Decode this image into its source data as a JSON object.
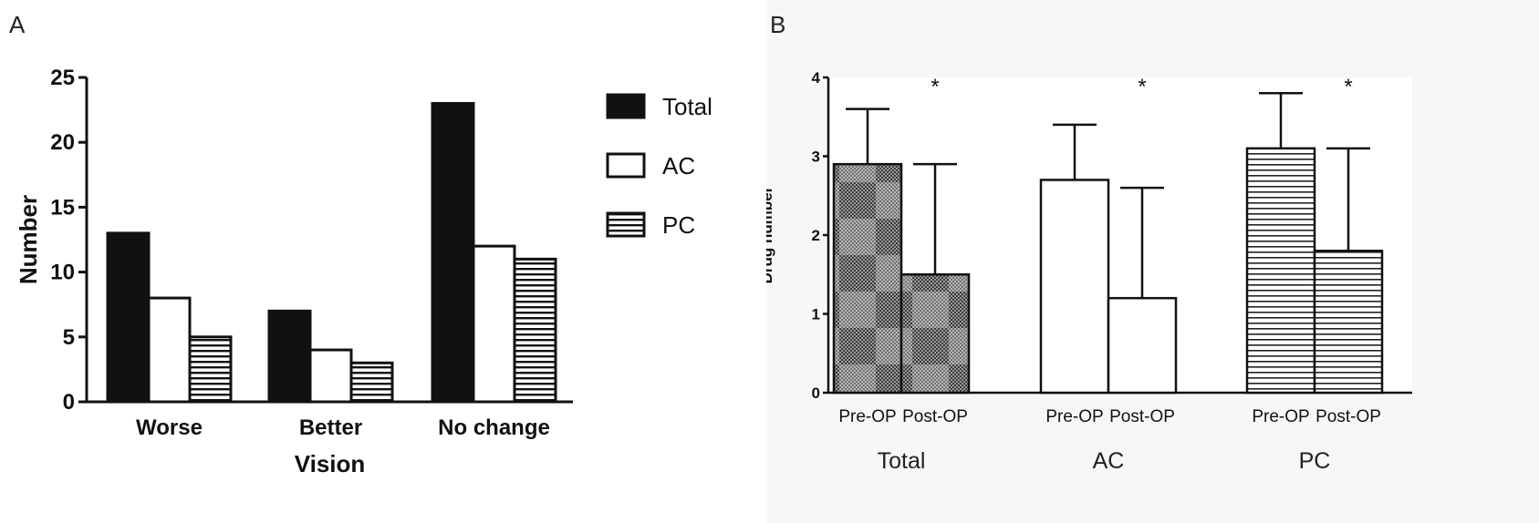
{
  "chart_data": [
    {
      "panel": "A",
      "type": "bar",
      "title": "",
      "xlabel": "Vision",
      "ylabel": "Number",
      "ylim": [
        0,
        25
      ],
      "yticks": [
        0,
        5,
        10,
        15,
        20,
        25
      ],
      "categories": [
        "Worse",
        "Better",
        "No change"
      ],
      "series": [
        {
          "name": "Total",
          "values": [
            13,
            7,
            23
          ],
          "pattern": "solid"
        },
        {
          "name": "AC",
          "values": [
            8,
            4,
            12
          ],
          "pattern": "white"
        },
        {
          "name": "PC",
          "values": [
            5,
            3,
            11
          ],
          "pattern": "hstripes"
        }
      ],
      "legend": "right"
    },
    {
      "panel": "B",
      "type": "bar",
      "title": "",
      "xlabel": "",
      "ylabel": "Drug number",
      "ylim": [
        0,
        4
      ],
      "yticks": [
        0,
        1,
        2,
        3,
        4
      ],
      "groups": [
        {
          "name": "Total",
          "pattern": "checker",
          "bars": [
            {
              "label": "Pre-OP",
              "value": 2.9,
              "error": 0.7
            },
            {
              "label": "Post-OP",
              "value": 1.5,
              "error": 1.4
            }
          ],
          "annotation": "*"
        },
        {
          "name": "AC",
          "pattern": "white",
          "bars": [
            {
              "label": "Pre-OP",
              "value": 2.7,
              "error": 0.7
            },
            {
              "label": "Post-OP",
              "value": 1.2,
              "error": 1.4
            }
          ],
          "annotation": "*"
        },
        {
          "name": "PC",
          "pattern": "hstripes",
          "bars": [
            {
              "label": "Pre-OP",
              "value": 3.1,
              "error": 0.7
            },
            {
              "label": "Post-OP",
              "value": 1.8,
              "error": 1.3
            }
          ],
          "annotation": "*"
        }
      ]
    }
  ],
  "panels": {
    "a_label": "A",
    "b_label": "B"
  },
  "colors": {
    "ink": "#111111",
    "panel_b_bg": "#f7f7f7",
    "checker_dark": "#555555",
    "checker_light": "#bdbdbd"
  }
}
